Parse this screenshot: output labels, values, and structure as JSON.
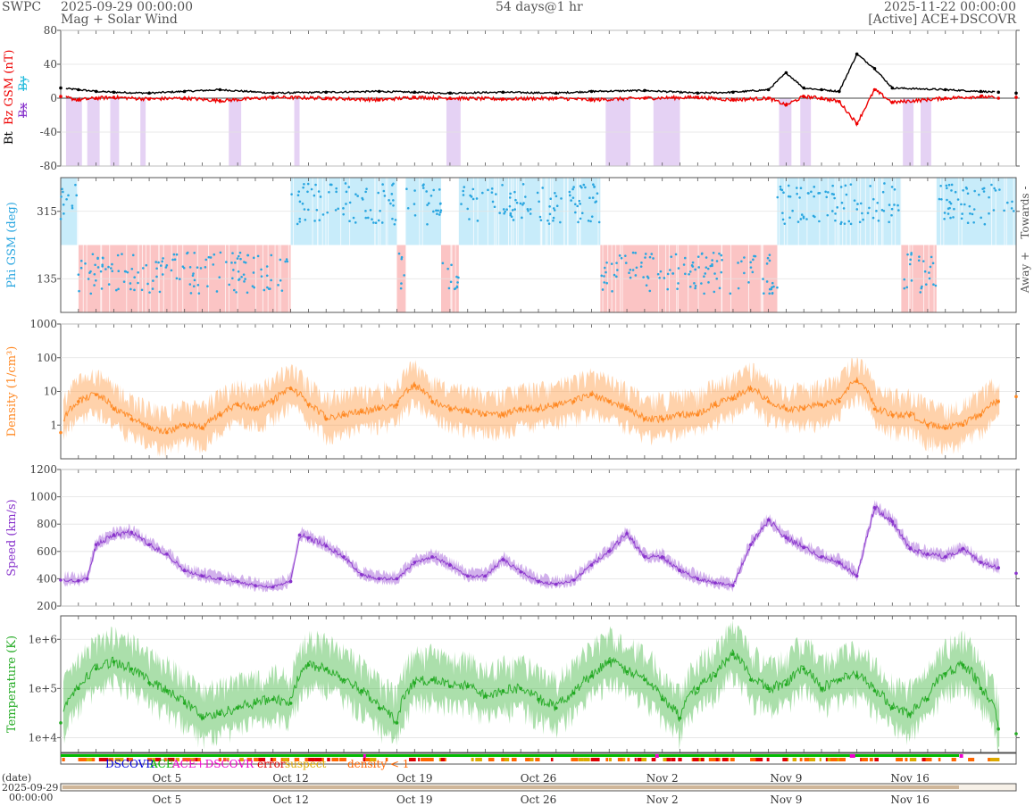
{
  "header": {
    "org": "SWPC",
    "start": "2025-09-29 00:00:00",
    "subtitle": "Mag + Solar Wind",
    "span": "54 days@1 hr",
    "end": "2025-11-22 00:00:00",
    "source": "[Active] ACE+DSCOVR"
  },
  "colors": {
    "bt": "#000000",
    "bz": "#ee0000",
    "bx": "#8833cc",
    "by": "#22bbdd",
    "phi_towards": "#c8ecfa",
    "phi_away": "#fbc4c4",
    "phi_points": "#2aa6e0",
    "density": "#ff8822",
    "speed": "#8833cc",
    "temperature": "#22aa22"
  },
  "chart_data": [
    {
      "id": "mag",
      "type": "line",
      "ylabel_parts": [
        "Bt",
        "Bz GSM (nT)",
        "Bx",
        "By"
      ],
      "ylim": [
        -80,
        80
      ],
      "yticks": [
        {
          "v": 80,
          "t": "80"
        },
        {
          "v": 40,
          "t": "40"
        },
        {
          "v": 0,
          "t": "0"
        },
        {
          "v": -40,
          "t": "-40"
        },
        {
          "v": -80,
          "t": "-80"
        }
      ],
      "xlim_days": [
        0,
        54
      ],
      "series": [
        {
          "name": "Bt",
          "x": [
            0,
            1,
            2,
            3,
            5,
            7,
            9,
            12,
            15,
            18,
            20,
            22,
            25,
            28,
            30,
            33,
            36,
            38,
            40,
            41,
            42,
            43,
            44,
            45,
            46,
            47,
            50,
            52,
            53,
            54
          ],
          "y": [
            12,
            10,
            8,
            7,
            6,
            8,
            10,
            6,
            7,
            8,
            7,
            6,
            7,
            6,
            8,
            9,
            6,
            7,
            10,
            30,
            12,
            10,
            8,
            52,
            35,
            12,
            10,
            8,
            7,
            6
          ]
        },
        {
          "name": "Bz",
          "x": [
            0,
            1,
            2,
            3,
            5,
            7,
            9,
            12,
            15,
            18,
            20,
            22,
            25,
            28,
            30,
            33,
            36,
            38,
            40,
            41,
            42,
            43,
            44,
            45,
            46,
            47,
            50,
            52,
            53,
            54
          ],
          "y": [
            2,
            -2,
            0,
            1,
            -1,
            0,
            -3,
            1,
            0,
            -2,
            1,
            0,
            -1,
            0,
            -2,
            0,
            1,
            -2,
            0,
            -8,
            2,
            0,
            -4,
            -30,
            10,
            -5,
            0,
            2,
            0,
            1
          ]
        }
      ]
    },
    {
      "id": "phi",
      "type": "scatter",
      "ylabel": "Phi GSM (deg)",
      "ylim": [
        45,
        405
      ],
      "yticks": [
        {
          "v": 315,
          "t": "315"
        },
        {
          "v": 135,
          "t": "135"
        }
      ],
      "right_labels": [
        "Towards -",
        "Away +"
      ],
      "sector_bands": [
        {
          "from": 0,
          "to": 1.0,
          "sector": "towards"
        },
        {
          "from": 1.0,
          "to": 13.0,
          "sector": "away"
        },
        {
          "from": 13.0,
          "to": 19.0,
          "sector": "towards"
        },
        {
          "from": 19.0,
          "to": 19.5,
          "sector": "away"
        },
        {
          "from": 19.5,
          "to": 21.5,
          "sector": "towards"
        },
        {
          "from": 21.5,
          "to": 22.5,
          "sector": "away"
        },
        {
          "from": 22.5,
          "to": 30.5,
          "sector": "towards"
        },
        {
          "from": 30.5,
          "to": 40.5,
          "sector": "away"
        },
        {
          "from": 40.5,
          "to": 47.5,
          "sector": "towards"
        },
        {
          "from": 47.5,
          "to": 49.5,
          "sector": "away"
        },
        {
          "from": 49.5,
          "to": 54,
          "sector": "towards"
        }
      ]
    },
    {
      "id": "density",
      "type": "line",
      "ylabel": "Density (1/cm³)",
      "log": true,
      "ylim": [
        0.1,
        1000
      ],
      "yticks": [
        {
          "v": 1000,
          "t": "1000"
        },
        {
          "v": 100,
          "t": "100"
        },
        {
          "v": 10,
          "t": "10"
        },
        {
          "v": 1,
          "t": "1"
        }
      ],
      "x": [
        0,
        1,
        2,
        3,
        4,
        5,
        6,
        7,
        8,
        9,
        10,
        11,
        12,
        13,
        14,
        15,
        16,
        17,
        18,
        19,
        20,
        21,
        22,
        23,
        24,
        25,
        26,
        27,
        28,
        29,
        30,
        31,
        32,
        33,
        34,
        35,
        36,
        37,
        38,
        39,
        40,
        41,
        42,
        43,
        44,
        45,
        46,
        47,
        48,
        49,
        50,
        51,
        52,
        53,
        54
      ],
      "y": [
        0.6,
        5,
        8,
        3,
        1.5,
        0.8,
        0.6,
        1,
        0.8,
        2,
        4,
        3,
        5,
        12,
        4,
        1.5,
        2,
        2.5,
        3,
        4,
        15,
        5,
        3,
        2.5,
        2,
        2,
        3,
        3,
        4,
        5,
        8,
        5,
        3,
        1.5,
        1.5,
        2,
        2,
        4,
        6,
        12,
        5,
        3,
        3,
        4,
        5,
        20,
        3,
        2,
        2,
        1,
        0.8,
        1,
        2,
        5,
        7
      ]
    },
    {
      "id": "speed",
      "type": "line",
      "ylabel": "Speed (km/s)",
      "ylim": [
        200,
        1200
      ],
      "yticks": [
        {
          "v": 1200,
          "t": "1200"
        },
        {
          "v": 1000,
          "t": "1000"
        },
        {
          "v": 800,
          "t": "800"
        },
        {
          "v": 600,
          "t": "600"
        },
        {
          "v": 400,
          "t": "400"
        },
        {
          "v": 200,
          "t": "200"
        }
      ],
      "x": [
        0,
        1,
        1.5,
        2,
        3,
        4,
        5,
        6,
        7,
        8,
        9,
        10,
        11,
        12,
        13,
        13.5,
        14,
        15,
        16,
        17,
        18,
        19,
        20,
        21,
        22,
        23,
        24,
        25,
        26,
        27,
        28,
        29,
        30,
        31,
        32,
        33,
        34,
        35,
        36,
        37,
        38,
        39,
        40,
        41,
        42,
        43,
        44,
        45,
        46,
        47,
        48,
        49,
        50,
        51,
        52,
        53,
        54
      ],
      "y": [
        390,
        385,
        400,
        650,
        720,
        740,
        650,
        580,
        460,
        420,
        400,
        380,
        350,
        340,
        380,
        720,
        700,
        640,
        560,
        430,
        400,
        400,
        520,
        560,
        500,
        420,
        420,
        540,
        450,
        380,
        360,
        390,
        500,
        600,
        730,
        560,
        560,
        460,
        400,
        370,
        350,
        650,
        830,
        700,
        630,
        560,
        520,
        420,
        920,
        820,
        620,
        580,
        560,
        620,
        520,
        480,
        440
      ]
    },
    {
      "id": "temperature",
      "type": "line",
      "ylabel": "Temperature (K)",
      "log": true,
      "ylim": [
        5000,
        3000000
      ],
      "yticks": [
        {
          "v": 1000000,
          "t": "1e+6"
        },
        {
          "v": 100000,
          "t": "1e+5"
        },
        {
          "v": 10000,
          "t": "1e+4"
        }
      ],
      "x": [
        0,
        1,
        2,
        3,
        4,
        5,
        6,
        7,
        8,
        9,
        10,
        11,
        12,
        13,
        14,
        15,
        16,
        17,
        18,
        19,
        20,
        21,
        22,
        23,
        24,
        25,
        26,
        27,
        28,
        29,
        30,
        31,
        32,
        33,
        34,
        35,
        36,
        37,
        38,
        39,
        40,
        41,
        42,
        43,
        44,
        45,
        46,
        47,
        48,
        49,
        50,
        51,
        52,
        53,
        54
      ],
      "y": [
        20000,
        100000,
        250000,
        350000,
        250000,
        130000,
        90000,
        50000,
        25000,
        30000,
        40000,
        50000,
        60000,
        50000,
        300000,
        250000,
        150000,
        90000,
        40000,
        20000,
        130000,
        150000,
        110000,
        110000,
        70000,
        90000,
        100000,
        60000,
        40000,
        80000,
        180000,
        350000,
        220000,
        150000,
        60000,
        25000,
        100000,
        180000,
        500000,
        150000,
        100000,
        120000,
        250000,
        100000,
        150000,
        180000,
        90000,
        40000,
        30000,
        60000,
        200000,
        300000,
        100000,
        15000,
        12000
      ]
    }
  ],
  "x_axis": {
    "ticks": [
      {
        "day": 6,
        "label": "Oct 5"
      },
      {
        "day": 13,
        "label": "Oct 12"
      },
      {
        "day": 20,
        "label": "Oct 19"
      },
      {
        "day": 27,
        "label": "Oct 26"
      },
      {
        "day": 34,
        "label": "Nov 2"
      },
      {
        "day": 41,
        "label": "Nov 9"
      },
      {
        "day": 48,
        "label": "Nov 16"
      }
    ]
  },
  "source_legend": {
    "items": [
      {
        "label": "DSCOVR",
        "color": "#0000dd"
      },
      {
        "label": "ACE",
        "color": "#00bb00"
      },
      {
        "label": "ACE+DSCOVR",
        "color": "#ee00cc"
      },
      {
        "label": "error",
        "color": "#dd0000"
      },
      {
        "label": "suspect",
        "color": "#ddaa00"
      },
      {
        "label": "density < 1",
        "color": "#ff6600"
      }
    ]
  },
  "timeline": {
    "date_label": "(date)",
    "start_date": "2025-09-29",
    "start_time": "00:00:00"
  }
}
